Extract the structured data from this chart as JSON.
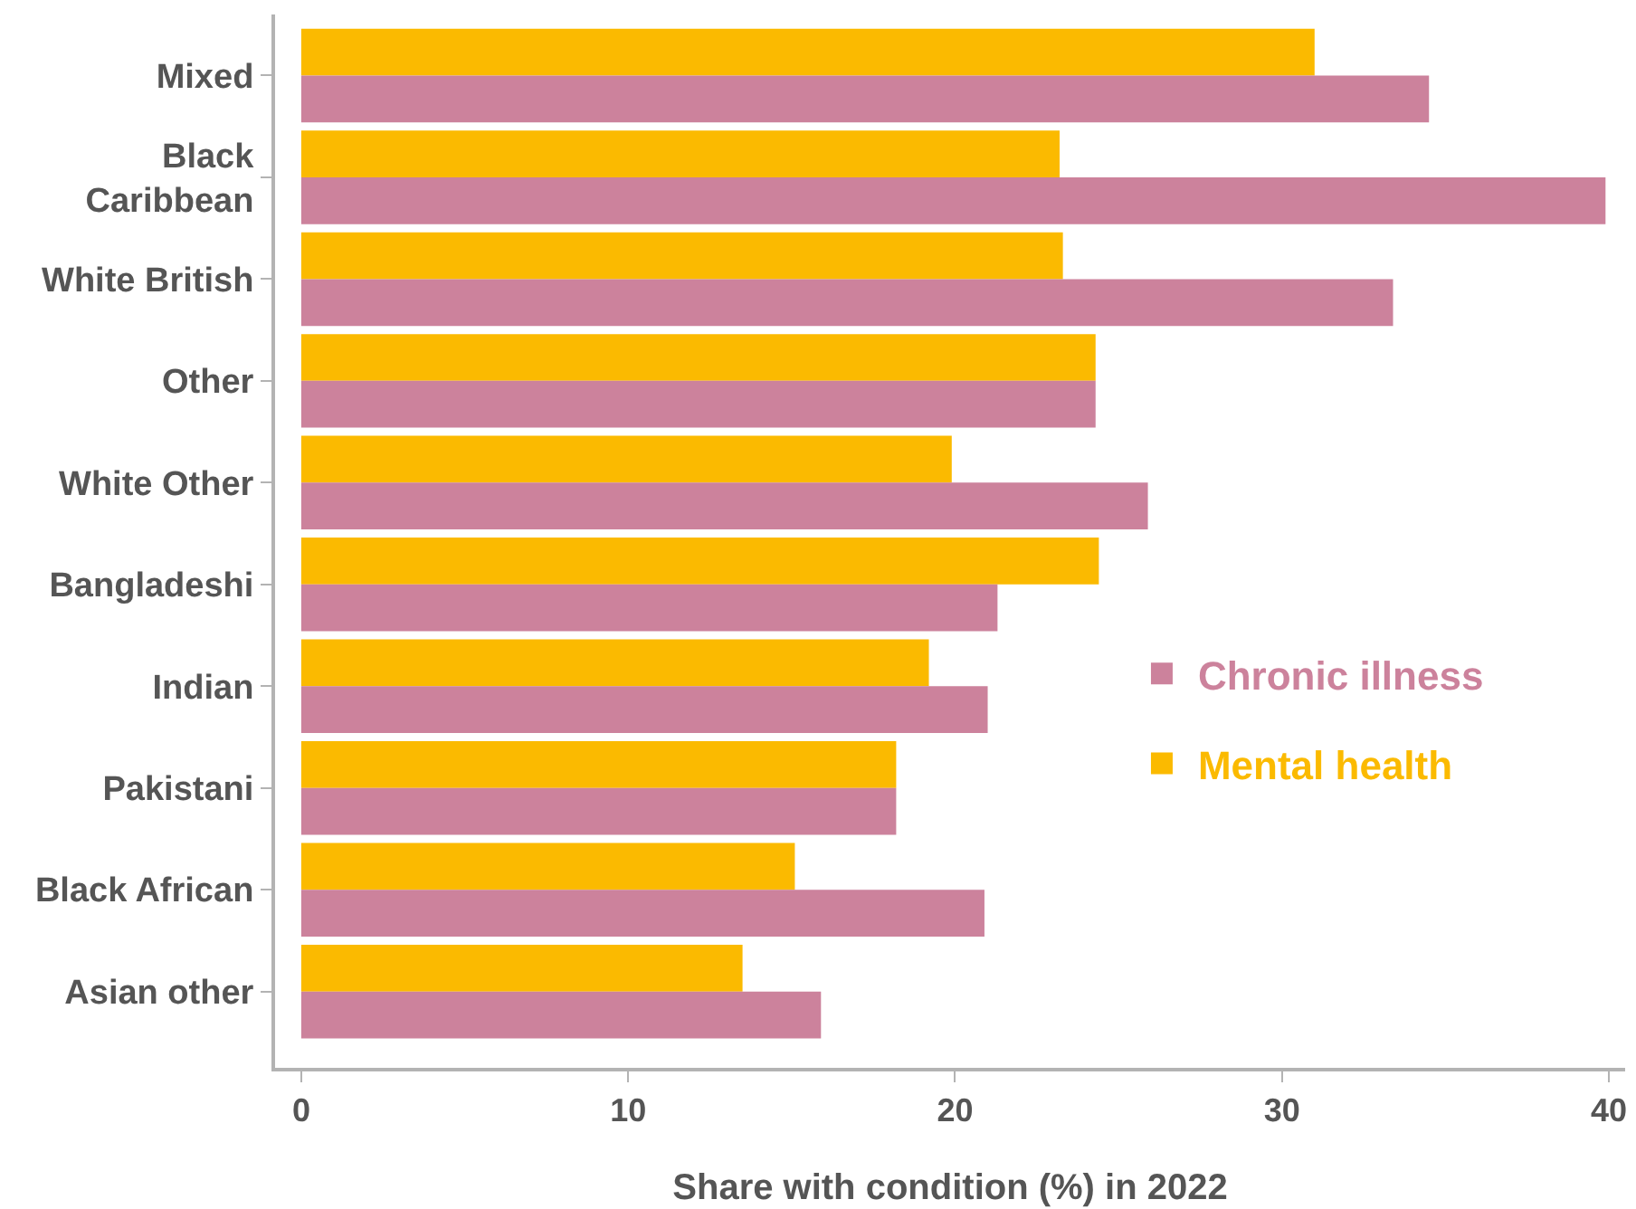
{
  "chart_data": {
    "type": "bar",
    "orientation": "horizontal",
    "xlabel": "Share with condition (%) in 2022",
    "categories": [
      "Mixed",
      "Black Caribbean",
      "White British",
      "Other",
      "White Other",
      "Bangladeshi",
      "Indian",
      "Pakistani",
      "Black African",
      "Asian other"
    ],
    "series": [
      {
        "name": "Chronic illness",
        "color": "#cc829c",
        "values": [
          34.5,
          39.9,
          33.4,
          24.3,
          25.9,
          21.3,
          21.0,
          18.2,
          20.9,
          15.9
        ]
      },
      {
        "name": "Mental health",
        "color": "#fbba00",
        "values": [
          31.0,
          23.2,
          23.3,
          24.3,
          19.9,
          24.4,
          19.2,
          18.2,
          15.1,
          13.5
        ]
      }
    ],
    "xlim": [
      -0.8,
      40.5
    ],
    "xticks": [
      0,
      10,
      20,
      30,
      40
    ],
    "legend": "right"
  }
}
